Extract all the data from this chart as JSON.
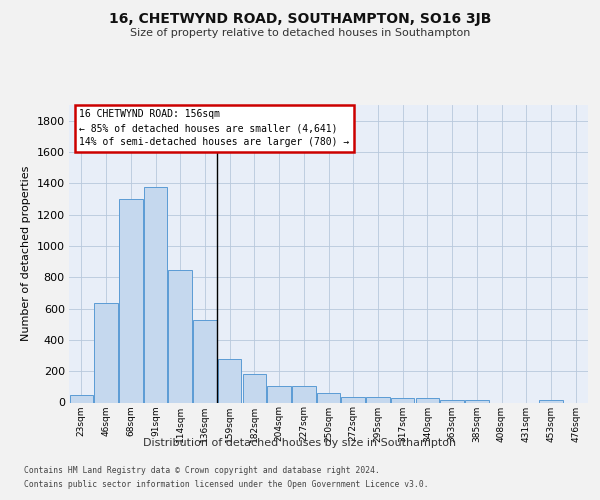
{
  "title": "16, CHETWYND ROAD, SOUTHAMPTON, SO16 3JB",
  "subtitle": "Size of property relative to detached houses in Southampton",
  "xlabel": "Distribution of detached houses by size in Southampton",
  "ylabel": "Number of detached properties",
  "categories": [
    "23sqm",
    "46sqm",
    "68sqm",
    "91sqm",
    "114sqm",
    "136sqm",
    "159sqm",
    "182sqm",
    "204sqm",
    "227sqm",
    "250sqm",
    "272sqm",
    "295sqm",
    "317sqm",
    "340sqm",
    "363sqm",
    "385sqm",
    "408sqm",
    "431sqm",
    "453sqm",
    "476sqm"
  ],
  "values": [
    50,
    635,
    1300,
    1375,
    845,
    530,
    275,
    185,
    105,
    105,
    60,
    37,
    37,
    28,
    28,
    15,
    15,
    0,
    0,
    15,
    0
  ],
  "bar_color": "#c5d8ee",
  "bar_edge_color": "#5b9bd5",
  "bg_color": "#e8eef8",
  "grid_color": "#b8c8dc",
  "fig_bg_color": "#f2f2f2",
  "annotation_text_line1": "16 CHETWYND ROAD: 156sqm",
  "annotation_text_line2": "← 85% of detached houses are smaller (4,641)",
  "annotation_text_line3": "14% of semi-detached houses are larger (780) →",
  "vline_index": 5.5,
  "ylim_max": 1900,
  "yticks": [
    0,
    200,
    400,
    600,
    800,
    1000,
    1200,
    1400,
    1600,
    1800
  ],
  "footer_line1": "Contains HM Land Registry data © Crown copyright and database right 2024.",
  "footer_line2": "Contains public sector information licensed under the Open Government Licence v3.0."
}
